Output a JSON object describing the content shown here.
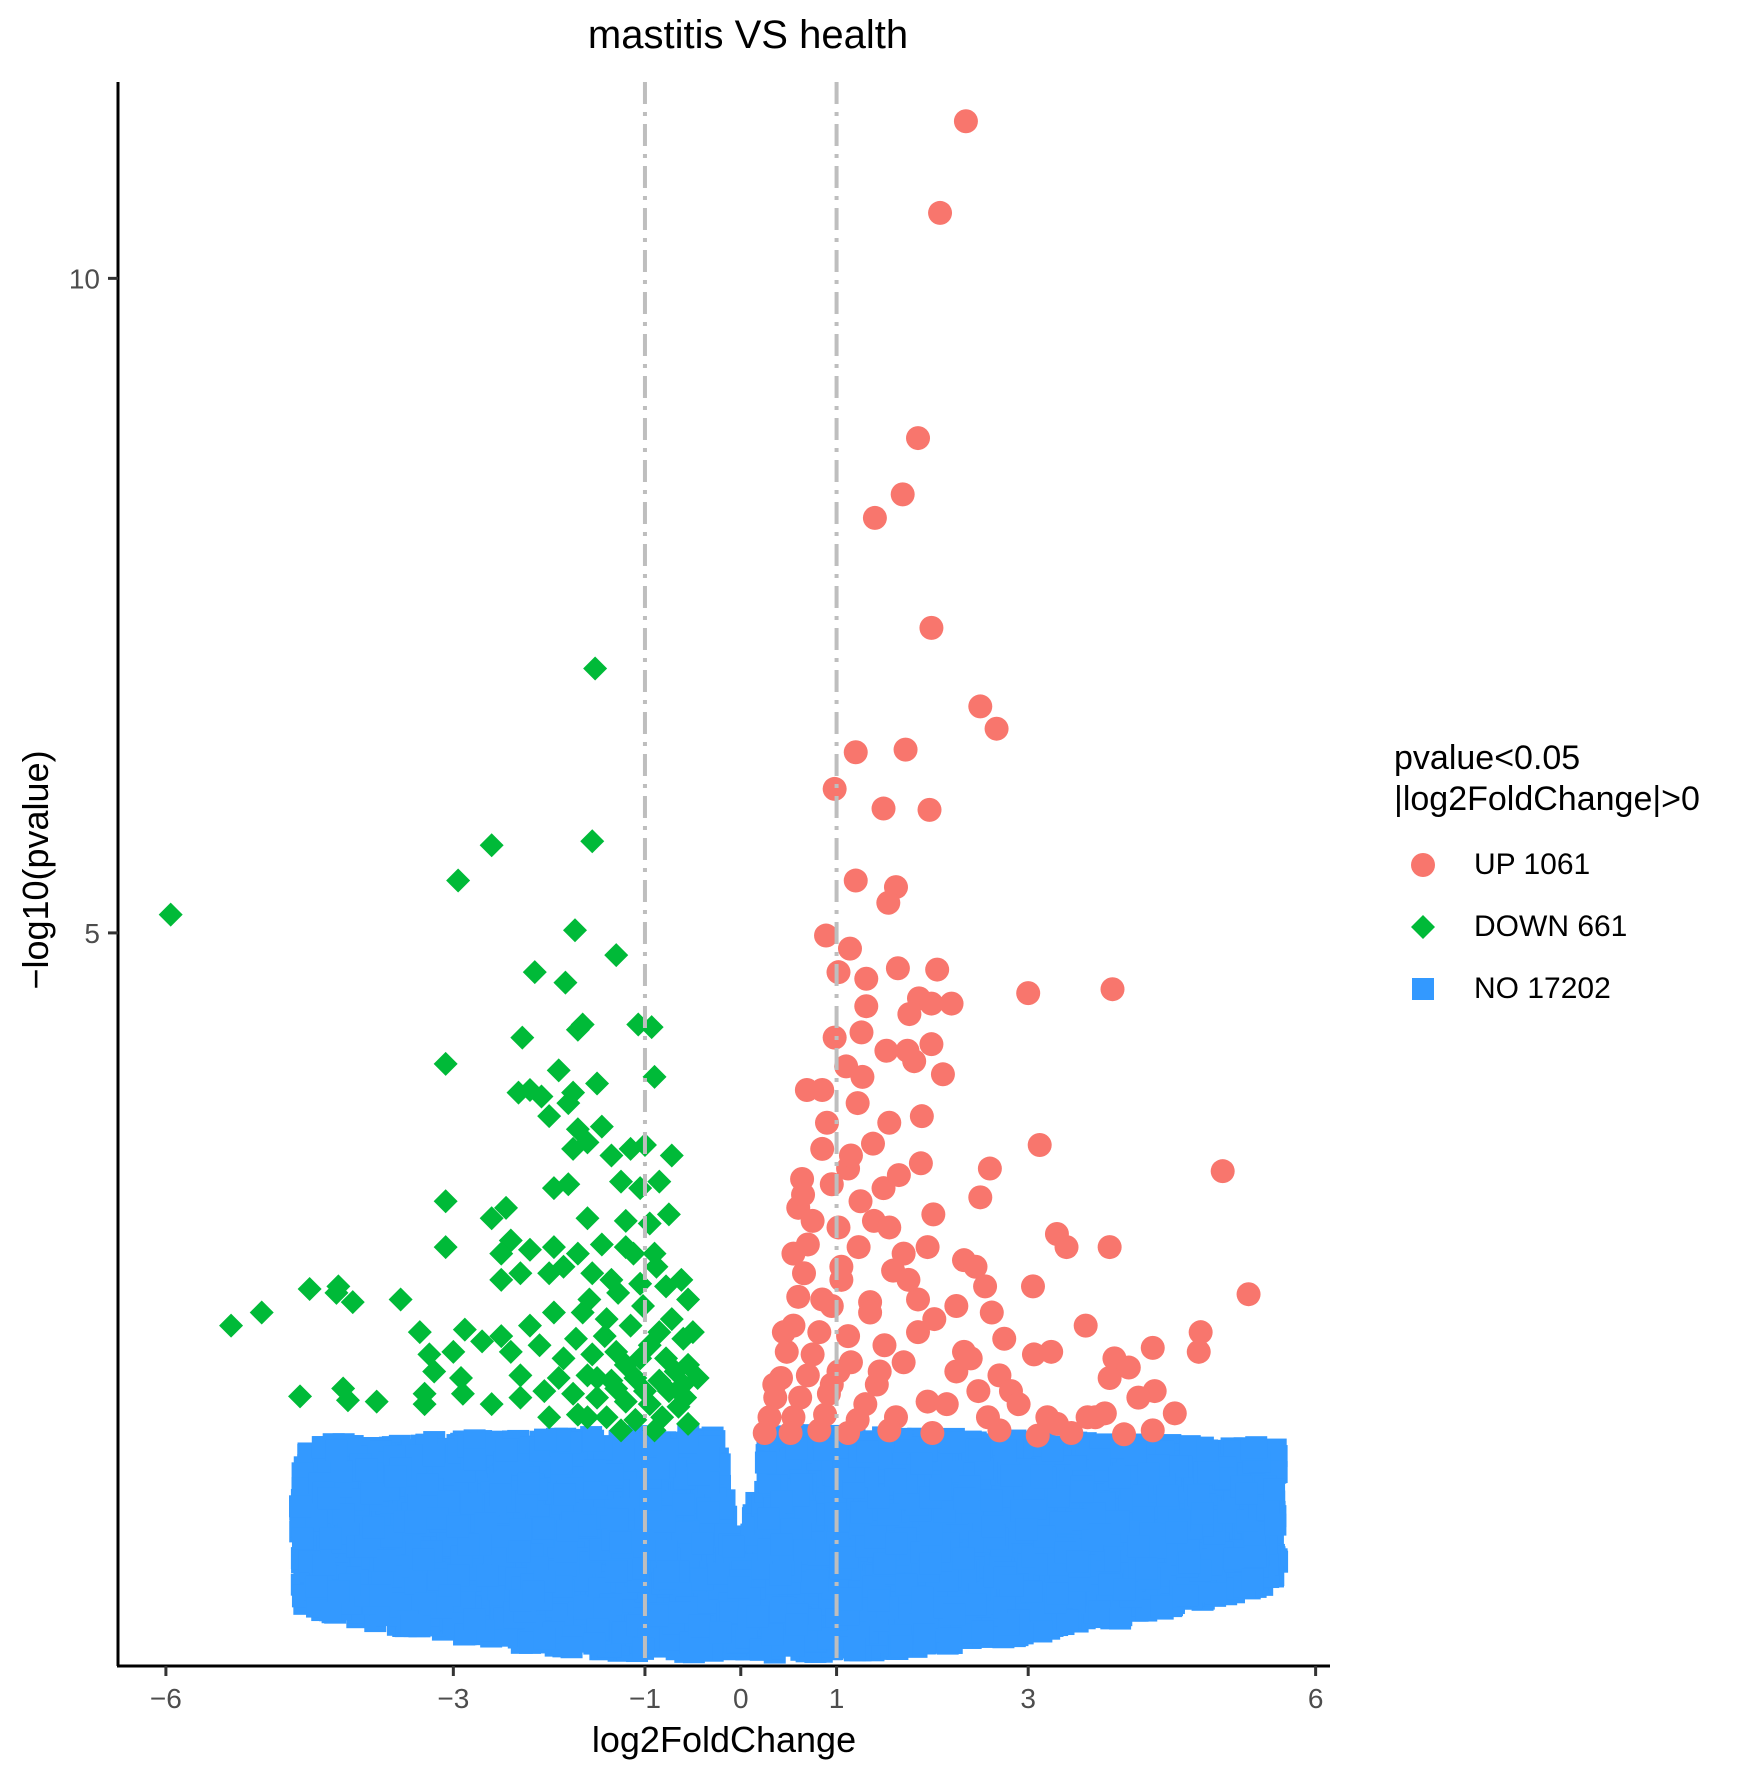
{
  "chart_data": {
    "type": "scatter",
    "title": "mastitis VS health",
    "xlabel": "log2FoldChange",
    "ylabel": "−log10(pvalue)",
    "xlim": [
      -6.5,
      6.15
    ],
    "ylim": [
      -0.6,
      11.5
    ],
    "x_ticks": [
      -6,
      -3,
      -1,
      0,
      1,
      3,
      6
    ],
    "x_tick_labels": [
      "−6",
      "−3",
      "−1",
      "0",
      "1",
      "3",
      "6"
    ],
    "y_ticks": [
      5,
      10
    ],
    "y_tick_labels": [
      "5",
      "10"
    ],
    "vlines": [
      -1,
      1
    ],
    "legend": {
      "position": "right",
      "title_lines": [
        "pvalue<0.05",
        "|log2FoldChange|>0"
      ],
      "entries": [
        {
          "label": "UP 1061",
          "color": "#F8766D",
          "shape": "circle"
        },
        {
          "label": "DOWN 661",
          "color": "#00BA38",
          "shape": "diamond"
        },
        {
          "label": "NO 17202",
          "color": "#3399FF",
          "shape": "square"
        }
      ]
    },
    "series": [
      {
        "name": "UP",
        "color": "#F8766D",
        "shape": "circle",
        "points": [
          [
            2.35,
            11.2
          ],
          [
            2.08,
            10.5
          ],
          [
            1.85,
            8.78
          ],
          [
            1.69,
            8.35
          ],
          [
            1.4,
            8.17
          ],
          [
            1.99,
            7.33
          ],
          [
            2.5,
            6.73
          ],
          [
            2.67,
            6.56
          ],
          [
            1.2,
            6.38
          ],
          [
            1.72,
            6.4
          ],
          [
            0.98,
            6.1
          ],
          [
            1.49,
            5.95
          ],
          [
            1.97,
            5.94
          ],
          [
            1.2,
            5.4
          ],
          [
            1.62,
            5.35
          ],
          [
            1.54,
            5.23
          ],
          [
            0.89,
            4.98
          ],
          [
            1.14,
            4.88
          ],
          [
            1.02,
            4.7
          ],
          [
            1.31,
            4.65
          ],
          [
            1.64,
            4.73
          ],
          [
            2.05,
            4.72
          ],
          [
            1.86,
            4.5
          ],
          [
            1.76,
            4.38
          ],
          [
            1.99,
            4.46
          ],
          [
            2.2,
            4.46
          ],
          [
            3.0,
            4.54
          ],
          [
            3.88,
            4.57
          ],
          [
            1.31,
            4.44
          ],
          [
            1.26,
            4.24
          ],
          [
            1.74,
            4.1
          ],
          [
            0.98,
            4.2
          ],
          [
            1.52,
            4.1
          ],
          [
            1.81,
            4.02
          ],
          [
            1.99,
            4.15
          ],
          [
            2.11,
            3.92
          ],
          [
            1.1,
            3.98
          ],
          [
            1.27,
            3.9
          ],
          [
            0.69,
            3.8
          ],
          [
            0.85,
            3.8
          ],
          [
            1.22,
            3.7
          ],
          [
            1.55,
            3.55
          ],
          [
            1.89,
            3.6
          ],
          [
            0.9,
            3.55
          ],
          [
            0.85,
            3.35
          ],
          [
            1.38,
            3.39
          ],
          [
            3.12,
            3.38
          ],
          [
            1.12,
            3.2
          ],
          [
            1.88,
            3.24
          ],
          [
            2.6,
            3.2
          ],
          [
            5.03,
            3.18
          ],
          [
            0.64,
            3.12
          ],
          [
            0.95,
            3.08
          ],
          [
            1.49,
            3.05
          ],
          [
            2.5,
            2.98
          ],
          [
            0.6,
            2.9
          ],
          [
            1.02,
            2.75
          ],
          [
            1.39,
            2.8
          ],
          [
            2.01,
            2.85
          ],
          [
            3.3,
            2.7
          ],
          [
            0.7,
            2.62
          ],
          [
            1.23,
            2.6
          ],
          [
            1.7,
            2.55
          ],
          [
            2.33,
            2.5
          ],
          [
            3.4,
            2.6
          ],
          [
            3.85,
            2.6
          ],
          [
            0.66,
            2.4
          ],
          [
            1.05,
            2.35
          ],
          [
            1.59,
            2.42
          ],
          [
            2.45,
            2.45
          ],
          [
            2.55,
            2.3
          ],
          [
            3.05,
            2.3
          ],
          [
            5.3,
            2.24
          ],
          [
            0.6,
            2.22
          ],
          [
            0.95,
            2.15
          ],
          [
            1.35,
            2.18
          ],
          [
            1.85,
            2.2
          ],
          [
            2.62,
            2.1
          ],
          [
            0.55,
            2.0
          ],
          [
            0.82,
            1.95
          ],
          [
            1.12,
            1.92
          ],
          [
            1.5,
            1.85
          ],
          [
            2.02,
            2.05
          ],
          [
            2.75,
            1.9
          ],
          [
            3.6,
            2.0
          ],
          [
            4.8,
            1.95
          ],
          [
            0.48,
            1.8
          ],
          [
            0.75,
            1.78
          ],
          [
            1.15,
            1.72
          ],
          [
            1.7,
            1.72
          ],
          [
            2.33,
            1.8
          ],
          [
            3.06,
            1.78
          ],
          [
            3.24,
            1.8
          ],
          [
            3.9,
            1.75
          ],
          [
            4.3,
            1.83
          ],
          [
            0.42,
            1.6
          ],
          [
            0.7,
            1.62
          ],
          [
            1.02,
            1.65
          ],
          [
            1.42,
            1.55
          ],
          [
            2.25,
            1.65
          ],
          [
            2.7,
            1.62
          ],
          [
            3.85,
            1.6
          ],
          [
            4.05,
            1.68
          ],
          [
            4.78,
            1.8
          ],
          [
            0.36,
            1.45
          ],
          [
            0.62,
            1.45
          ],
          [
            0.92,
            1.48
          ],
          [
            1.3,
            1.4
          ],
          [
            1.95,
            1.42
          ],
          [
            2.48,
            1.5
          ],
          [
            2.82,
            1.5
          ],
          [
            4.32,
            1.5
          ],
          [
            0.3,
            1.3
          ],
          [
            0.55,
            1.3
          ],
          [
            0.88,
            1.32
          ],
          [
            1.22,
            1.28
          ],
          [
            1.62,
            1.3
          ],
          [
            2.58,
            1.3
          ],
          [
            3.2,
            1.3
          ],
          [
            3.62,
            1.3
          ],
          [
            3.8,
            1.33
          ],
          [
            4.53,
            1.33
          ],
          [
            0.25,
            1.18
          ],
          [
            0.52,
            1.18
          ],
          [
            0.82,
            1.2
          ],
          [
            1.12,
            1.18
          ],
          [
            1.55,
            1.2
          ],
          [
            2.0,
            1.18
          ],
          [
            2.7,
            1.2
          ],
          [
            3.1,
            1.16
          ],
          [
            3.45,
            1.18
          ],
          [
            4.0,
            1.17
          ],
          [
            4.3,
            1.2
          ],
          [
            0.35,
            1.55
          ],
          [
            0.45,
            1.95
          ],
          [
            0.55,
            2.55
          ],
          [
            0.65,
            3.0
          ],
          [
            0.75,
            2.8
          ],
          [
            0.85,
            2.2
          ],
          [
            0.95,
            1.55
          ],
          [
            1.05,
            2.45
          ],
          [
            1.15,
            3.3
          ],
          [
            1.25,
            2.95
          ],
          [
            1.35,
            2.1
          ],
          [
            1.45,
            1.65
          ],
          [
            1.55,
            2.75
          ],
          [
            1.65,
            3.15
          ],
          [
            1.75,
            2.35
          ],
          [
            1.85,
            1.95
          ],
          [
            1.95,
            2.6
          ],
          [
            2.15,
            1.4
          ],
          [
            2.25,
            2.15
          ],
          [
            2.4,
            1.75
          ],
          [
            2.9,
            1.4
          ],
          [
            3.3,
            1.25
          ],
          [
            3.7,
            1.3
          ],
          [
            4.15,
            1.45
          ]
        ]
      },
      {
        "name": "DOWN",
        "color": "#00BA38",
        "shape": "diamond",
        "points": [
          [
            -1.52,
            7.02
          ],
          [
            -1.55,
            5.7
          ],
          [
            -2.6,
            5.67
          ],
          [
            -2.95,
            5.4
          ],
          [
            -5.95,
            5.14
          ],
          [
            -1.73,
            5.02
          ],
          [
            -1.3,
            4.83
          ],
          [
            -2.15,
            4.7
          ],
          [
            -1.83,
            4.62
          ],
          [
            -1.07,
            4.3
          ],
          [
            -0.93,
            4.28
          ],
          [
            -1.65,
            4.3
          ],
          [
            -1.7,
            4.26
          ],
          [
            -2.28,
            4.2
          ],
          [
            -3.08,
            4.0
          ],
          [
            -1.9,
            3.95
          ],
          [
            -0.9,
            3.9
          ],
          [
            -1.5,
            3.85
          ],
          [
            -2.32,
            3.78
          ],
          [
            -2.2,
            3.8
          ],
          [
            -2.08,
            3.75
          ],
          [
            -1.75,
            3.78
          ],
          [
            -1.8,
            3.7
          ],
          [
            -2.0,
            3.6
          ],
          [
            -1.7,
            3.5
          ],
          [
            -1.45,
            3.52
          ],
          [
            -1.6,
            3.4
          ],
          [
            -1.75,
            3.35
          ],
          [
            -1.35,
            3.3
          ],
          [
            -1.15,
            3.35
          ],
          [
            -1.0,
            3.38
          ],
          [
            -0.72,
            3.3
          ],
          [
            -1.8,
            3.08
          ],
          [
            -1.95,
            3.05
          ],
          [
            -1.25,
            3.1
          ],
          [
            -1.05,
            3.05
          ],
          [
            -0.85,
            3.1
          ],
          [
            -3.08,
            2.95
          ],
          [
            -2.45,
            2.9
          ],
          [
            -2.6,
            2.82
          ],
          [
            -1.6,
            2.82
          ],
          [
            -1.2,
            2.8
          ],
          [
            -0.95,
            2.78
          ],
          [
            -0.75,
            2.85
          ],
          [
            -2.4,
            2.65
          ],
          [
            -2.5,
            2.55
          ],
          [
            -2.2,
            2.58
          ],
          [
            -1.95,
            2.6
          ],
          [
            -1.7,
            2.55
          ],
          [
            -1.45,
            2.62
          ],
          [
            -1.2,
            2.6
          ],
          [
            -0.9,
            2.55
          ],
          [
            -3.08,
            2.6
          ],
          [
            -2.5,
            2.35
          ],
          [
            -2.3,
            2.4
          ],
          [
            -2.0,
            2.4
          ],
          [
            -1.85,
            2.45
          ],
          [
            -1.55,
            2.4
          ],
          [
            -1.35,
            2.35
          ],
          [
            -1.05,
            2.32
          ],
          [
            -0.78,
            2.3
          ],
          [
            -0.55,
            2.2
          ],
          [
            -4.5,
            2.28
          ],
          [
            -4.2,
            2.3
          ],
          [
            -4.22,
            2.25
          ],
          [
            -3.55,
            2.2
          ],
          [
            -4.05,
            2.18
          ],
          [
            -5.0,
            2.1
          ],
          [
            -5.32,
            2.0
          ],
          [
            -3.35,
            1.95
          ],
          [
            -2.88,
            1.97
          ],
          [
            -2.5,
            1.92
          ],
          [
            -2.2,
            2.0
          ],
          [
            -1.95,
            2.1
          ],
          [
            -1.65,
            2.1
          ],
          [
            -1.4,
            2.05
          ],
          [
            -1.15,
            2.0
          ],
          [
            -0.85,
            1.95
          ],
          [
            -0.6,
            1.9
          ],
          [
            -3.25,
            1.78
          ],
          [
            -3.0,
            1.8
          ],
          [
            -2.7,
            1.88
          ],
          [
            -2.4,
            1.8
          ],
          [
            -2.1,
            1.85
          ],
          [
            -1.85,
            1.75
          ],
          [
            -1.55,
            1.78
          ],
          [
            -1.3,
            1.8
          ],
          [
            -1.05,
            1.75
          ],
          [
            -0.78,
            1.75
          ],
          [
            -0.55,
            1.7
          ],
          [
            -3.2,
            1.65
          ],
          [
            -2.92,
            1.6
          ],
          [
            -2.3,
            1.62
          ],
          [
            -1.9,
            1.6
          ],
          [
            -1.6,
            1.62
          ],
          [
            -1.35,
            1.58
          ],
          [
            -1.1,
            1.6
          ],
          [
            -0.85,
            1.58
          ],
          [
            -0.6,
            1.55
          ],
          [
            -4.6,
            1.46
          ],
          [
            -4.15,
            1.52
          ],
          [
            -4.1,
            1.43
          ],
          [
            -3.8,
            1.42
          ],
          [
            -3.3,
            1.48
          ],
          [
            -2.9,
            1.48
          ],
          [
            -2.6,
            1.4
          ],
          [
            -2.3,
            1.45
          ],
          [
            -2.05,
            1.5
          ],
          [
            -1.75,
            1.48
          ],
          [
            -1.5,
            1.45
          ],
          [
            -1.2,
            1.42
          ],
          [
            -0.95,
            1.4
          ],
          [
            -0.65,
            1.38
          ],
          [
            -3.3,
            1.4
          ],
          [
            -2.0,
            1.3
          ],
          [
            -1.7,
            1.32
          ],
          [
            -1.4,
            1.3
          ],
          [
            -1.1,
            1.28
          ],
          [
            -0.82,
            1.3
          ],
          [
            -0.55,
            1.25
          ],
          [
            -1.25,
            1.2
          ],
          [
            -0.9,
            1.2
          ],
          [
            -0.45,
            1.6
          ],
          [
            -0.5,
            1.95
          ],
          [
            -0.62,
            2.35
          ],
          [
            -0.72,
            2.05
          ],
          [
            -0.88,
            2.45
          ],
          [
            -1.02,
            2.15
          ],
          [
            -1.12,
            2.55
          ],
          [
            -1.28,
            2.25
          ],
          [
            -1.42,
            1.92
          ],
          [
            -1.58,
            2.2
          ],
          [
            -1.72,
            1.9
          ],
          [
            -0.68,
            1.65
          ],
          [
            -0.95,
            1.85
          ],
          [
            -1.2,
            1.7
          ],
          [
            -1.5,
            1.6
          ],
          [
            -0.58,
            1.45
          ],
          [
            -0.75,
            1.5
          ],
          [
            -1.0,
            1.5
          ],
          [
            -1.3,
            1.52
          ],
          [
            -1.6,
            1.3
          ]
        ]
      },
      {
        "name": "NO",
        "color": "#3399FF",
        "shape": "square",
        "cloud_x_range": [
          -4.6,
          5.6
        ],
        "cloud_y_range": [
          -0.5,
          1.2
        ],
        "points": [
          [
            5.58,
            0.48
          ],
          [
            -4.6,
            0.62
          ],
          [
            -4.3,
            0.68
          ],
          [
            -3.6,
            0.85
          ],
          [
            4.45,
            0.7
          ],
          [
            -0.02,
            0.0
          ]
        ]
      }
    ]
  }
}
